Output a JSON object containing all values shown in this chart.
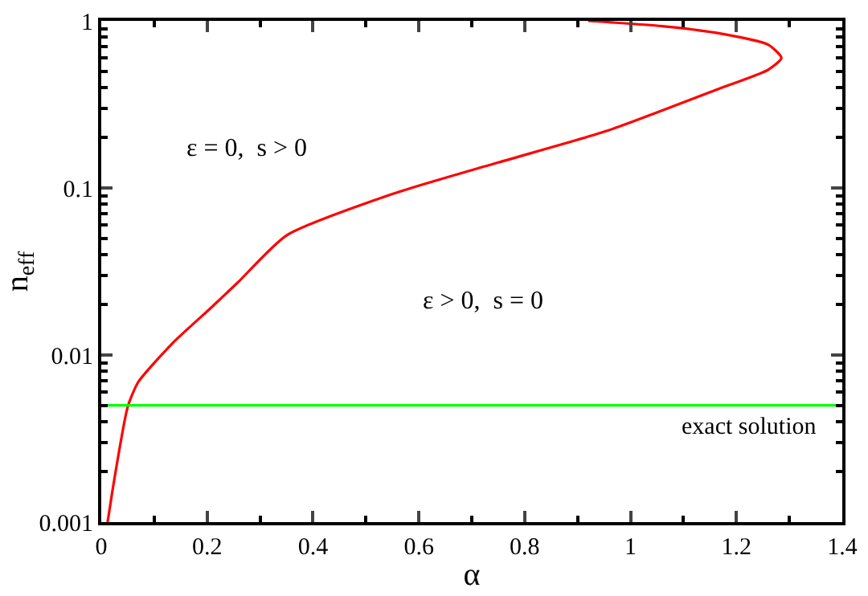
{
  "chart_data": {
    "type": "line",
    "xlabel": "α",
    "ylabel": "n$_{eff}$",
    "log": "y",
    "marker": "none",
    "line_style": "solid",
    "xlim": [
      0,
      1.4
    ],
    "xticks": [
      0,
      0.2,
      0.4,
      0.6,
      0.8,
      1,
      1.2,
      1.4
    ],
    "ylim": [
      0.001,
      1
    ],
    "yticks": [
      0.001,
      0.01,
      0.1,
      1
    ],
    "series": [
      {
        "color": "#ff0000",
        "x": [
          0.012,
          0.024,
          0.05,
          0.07,
          0.135,
          0.206,
          0.257,
          0.35,
          0.55,
          0.75,
          0.956,
          1.16,
          1.26,
          1.285,
          1.26,
          1.16,
          1.06,
          0.92
        ],
        "values": [
          0.001,
          0.00175,
          0.0049,
          0.0069,
          0.0118,
          0.019,
          0.027,
          0.052,
          0.092,
          0.142,
          0.22,
          0.385,
          0.51,
          0.6,
          0.72,
          0.85,
          0.93,
          1
        ]
      }
    ],
    "ref_lines": [
      {
        "axis": "y",
        "value": 0.005,
        "label": "exact solution",
        "color": "#00ff00"
      }
    ],
    "annotations": [
      "ε = 0,  s > 0",
      "ε > 0,  s = 0"
    ]
  }
}
